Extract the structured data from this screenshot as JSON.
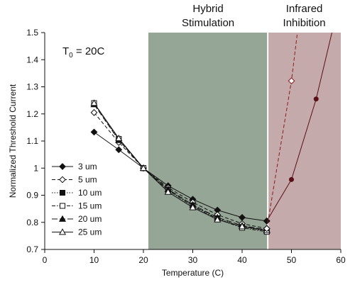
{
  "chart_data": {
    "type": "line",
    "xlabel": "Temperature (C)",
    "ylabel": "Normalized Threshold Current",
    "xlim": [
      0,
      60
    ],
    "ylim": [
      0.7,
      1.5
    ],
    "xticks": [
      "0",
      "10",
      "20",
      "30",
      "40",
      "50",
      "60"
    ],
    "yticks": [
      "0.7",
      "0.8",
      "0.9",
      "1",
      "1.1",
      "1.2",
      "1.3",
      "1.4",
      "1.5"
    ],
    "grid": false,
    "legend_position": "lower-left",
    "annotation": {
      "main": "T",
      "sub": "0",
      "rest": " = 20C"
    },
    "regions": [
      {
        "label_line1": "Hybrid",
        "label_line2": "Stimulation",
        "x_start": 21,
        "x_end": 45.2,
        "color": "#95a596"
      },
      {
        "label_line1": "Infrared",
        "label_line2": "Inhibition",
        "x_start": 45.2,
        "x_end": 60,
        "color": "#c5aaab"
      }
    ],
    "series": [
      {
        "name": "3 um",
        "marker": "diamond-filled",
        "dash": "solid",
        "color": "#111111",
        "x": [
          10,
          15,
          20,
          25,
          30,
          35,
          40,
          45
        ],
        "y": [
          1.133,
          1.068,
          1.0,
          0.935,
          0.885,
          0.845,
          0.818,
          0.805
        ]
      },
      {
        "name": "5 um",
        "marker": "diamond-open",
        "dash": "dashed",
        "color": "#111111",
        "x": [
          10,
          15,
          20,
          25,
          30,
          35,
          40,
          45
        ],
        "y": [
          1.205,
          1.095,
          1.0,
          0.928,
          0.874,
          0.828,
          0.795,
          0.777
        ]
      },
      {
        "name": "10 um",
        "marker": "square-filled",
        "dash": "dotted",
        "color": "#111111",
        "x": [
          10,
          15,
          20,
          25,
          30,
          35,
          40,
          45
        ],
        "y": [
          1.238,
          1.106,
          1.0,
          0.92,
          0.863,
          0.815,
          0.783,
          0.768
        ]
      },
      {
        "name": "15 um",
        "marker": "square-open",
        "dash": "dashdot",
        "color": "#111111",
        "x": [
          10,
          15,
          20,
          25,
          30,
          35,
          40,
          45
        ],
        "y": [
          1.24,
          1.108,
          1.0,
          0.918,
          0.86,
          0.812,
          0.78,
          0.765
        ]
      },
      {
        "name": "20 um",
        "marker": "triangle-filled",
        "dash": "longdash",
        "color": "#111111",
        "x": [
          10,
          15,
          20,
          25,
          30,
          35,
          40,
          45
        ],
        "y": [
          1.235,
          1.103,
          1.0,
          0.922,
          0.865,
          0.818,
          0.788,
          0.772
        ]
      },
      {
        "name": "25 um",
        "marker": "triangle-open",
        "dash": "solid",
        "color": "#111111",
        "x": [
          10,
          15,
          20,
          25,
          30,
          35,
          40,
          45
        ],
        "y": [
          1.24,
          1.11,
          1.0,
          0.912,
          0.855,
          0.81,
          0.785,
          0.77
        ]
      },
      {
        "marker": "circle-filled",
        "dash": "solid",
        "color": "#5a0f14",
        "x": [
          45,
          50,
          55,
          58.2
        ],
        "y": [
          0.805,
          0.958,
          1.255,
          1.5
        ]
      },
      {
        "marker": "diamond-open",
        "dash": "dashed",
        "color": "#8b1a1a",
        "x": [
          45,
          50,
          51.2
        ],
        "y": [
          0.777,
          1.322,
          1.5
        ]
      }
    ]
  }
}
